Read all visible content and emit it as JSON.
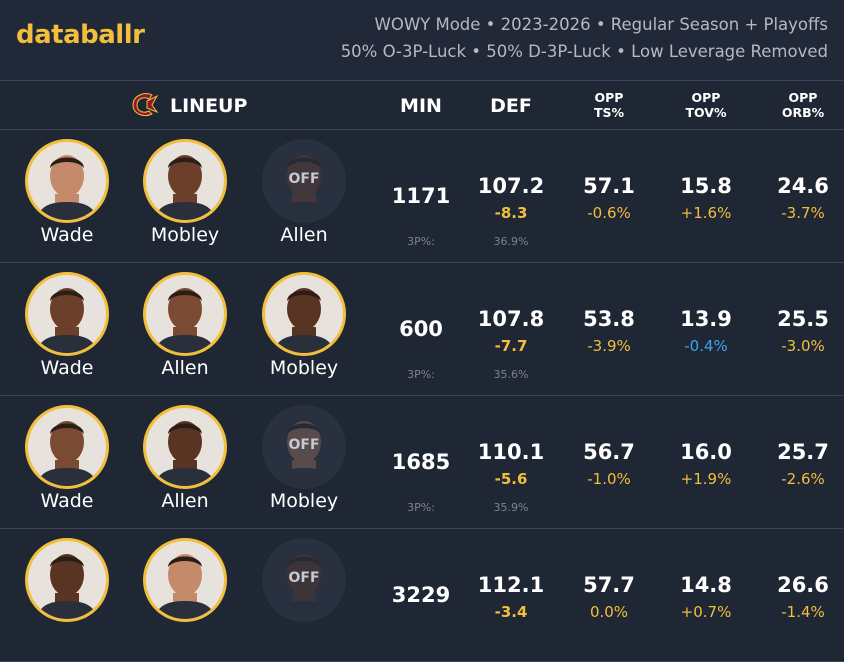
{
  "header": {
    "logo": "databallr",
    "subtitle_line1": "WOWY Mode • 2023-2026 • Regular Season + Playoffs",
    "subtitle_line2": "50% O-3P-Luck • 50% D-3P-Luck • Low Leverage Removed"
  },
  "columns": {
    "lineup": "LINEUP",
    "min": "MIN",
    "def": "DEF",
    "opp_ts": [
      "OPP",
      "TS%"
    ],
    "opp_tov": [
      "OPP",
      "TOV%"
    ],
    "opp_orb": [
      "OPP",
      "ORB%"
    ]
  },
  "colors": {
    "accent": "#f2bf3c",
    "positive_delta": "#f2bf3c",
    "negative_delta": "#3aa8ee",
    "background": "#1f2634",
    "team_logo": "#8a1a2e"
  },
  "off_label": "OFF",
  "rows": [
    {
      "players": [
        {
          "name": "Wade",
          "status": "on"
        },
        {
          "name": "Mobley",
          "status": "on"
        },
        {
          "name": "Allen",
          "status": "off"
        }
      ],
      "min": "1171",
      "def": "107.2",
      "def_delta": "-8.3",
      "three_label": "3P%:",
      "three_value": "36.9%",
      "ts": "57.1",
      "ts_delta": "-0.6%",
      "tov": "15.8",
      "tov_delta": "+1.6%",
      "orb": "24.6",
      "orb_delta": "-3.7%"
    },
    {
      "players": [
        {
          "name": "Wade",
          "status": "on"
        },
        {
          "name": "Allen",
          "status": "on"
        },
        {
          "name": "Mobley",
          "status": "on"
        }
      ],
      "min": "600",
      "def": "107.8",
      "def_delta": "-7.7",
      "three_label": "3P%:",
      "three_value": "35.6%",
      "ts": "53.8",
      "ts_delta": "-3.9%",
      "tov": "13.9",
      "tov_delta": "-0.4%",
      "orb": "25.5",
      "orb_delta": "-3.0%"
    },
    {
      "players": [
        {
          "name": "Wade",
          "status": "on"
        },
        {
          "name": "Allen",
          "status": "on"
        },
        {
          "name": "Mobley",
          "status": "off"
        }
      ],
      "min": "1685",
      "def": "110.1",
      "def_delta": "-5.6",
      "three_label": "3P%:",
      "three_value": "35.9%",
      "ts": "56.7",
      "ts_delta": "-1.0%",
      "tov": "16.0",
      "tov_delta": "+1.9%",
      "orb": "25.7",
      "orb_delta": "-2.6%"
    },
    {
      "players": [
        {
          "name": "",
          "status": "on"
        },
        {
          "name": "",
          "status": "on"
        },
        {
          "name": "",
          "status": "off"
        }
      ],
      "min": "3229",
      "def": "112.1",
      "def_delta": "-3.4",
      "three_label": "",
      "three_value": "",
      "ts": "57.7",
      "ts_delta": "0.0%",
      "tov": "14.8",
      "tov_delta": "+0.7%",
      "orb": "26.6",
      "orb_delta": "-1.4%"
    }
  ]
}
